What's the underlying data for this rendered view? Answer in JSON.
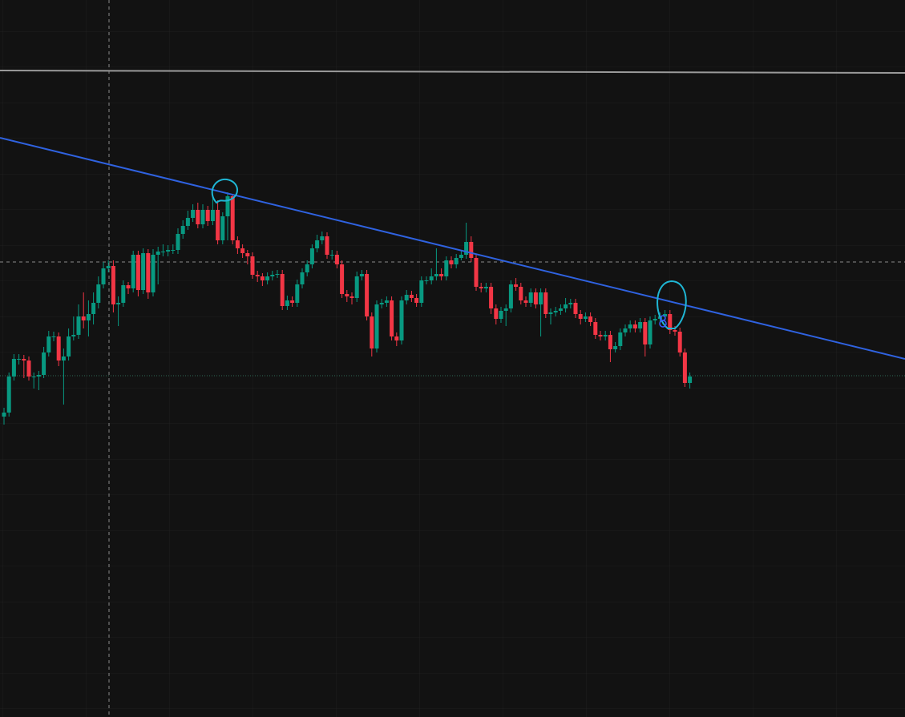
{
  "chart_data": {
    "type": "candlestick",
    "ylim": [
      0,
      89.5
    ],
    "up_color": "#089981",
    "down_color": "#f23645",
    "open": [
      37.5,
      38.0,
      42.5,
      44.7,
      44.7,
      44.5,
      42.5,
      42.5,
      42.7,
      45.5,
      47.5,
      47.5,
      44.5,
      45.0,
      47.5,
      47.7,
      50.0,
      49.5,
      50.3,
      51.7,
      54.0,
      56.0,
      56.3,
      51.5,
      51.7,
      53.9,
      53.5,
      57.7,
      53.3,
      57.9,
      53.0,
      57.7,
      58.1,
      58.1,
      58.3,
      58.3,
      60.3,
      61.3,
      62.3,
      63.3,
      61.5,
      63.3,
      61.9,
      63.3,
      59.5,
      62.5,
      65.0,
      59.5,
      58.5,
      57.9,
      57.5,
      55.2,
      55.0,
      54.5,
      55.0,
      55.2,
      55.3,
      51.3,
      52.0,
      51.7,
      54.0,
      55.5,
      56.5,
      58.5,
      59.5,
      60.0,
      57.7,
      57.7,
      56.5,
      52.8,
      52.5,
      52.3,
      55.0,
      55.3,
      50.0,
      46.0,
      51.5,
      51.7,
      52.0,
      47.5,
      47.0,
      52.0,
      52.7,
      52.3,
      51.7,
      54.5,
      54.5,
      55.0,
      55.3,
      55.0,
      57.0,
      56.5,
      57.3,
      57.7,
      59.3,
      57.3,
      53.7,
      53.5,
      53.7,
      51.0,
      49.7,
      50.7,
      51.0,
      54.0,
      53.7,
      52.0,
      51.7,
      53.0,
      51.5,
      53.0,
      50.3,
      50.5,
      50.7,
      51.0,
      51.5,
      51.7,
      50.3,
      49.7,
      50.0,
      49.3,
      47.7,
      47.5,
      47.7,
      45.9,
      46.3,
      48.0,
      48.5,
      49.0,
      48.5,
      49.3,
      46.5,
      49.5,
      49.7,
      50.0,
      50.3,
      48.3,
      48.1,
      45.5,
      41.7
    ],
    "high": [
      38.6,
      43.0,
      45.3,
      45.3,
      45.2,
      45.0,
      43.0,
      43.2,
      46.2,
      48.2,
      48.1,
      48.0,
      46.0,
      48.5,
      50.0,
      51.5,
      53.0,
      52.0,
      53.0,
      55.0,
      56.8,
      57.0,
      57.0,
      52.5,
      54.5,
      54.3,
      58.2,
      58.2,
      58.5,
      58.4,
      58.4,
      58.7,
      59.0,
      58.9,
      59.0,
      61.0,
      62.0,
      63.2,
      64.0,
      64.2,
      64.0,
      63.8,
      65.0,
      64.5,
      63.0,
      65.5,
      65.3,
      60.0,
      59.0,
      58.3,
      58.0,
      55.7,
      55.4,
      55.5,
      55.7,
      55.8,
      55.8,
      52.6,
      52.5,
      54.6,
      56.0,
      57.0,
      59.0,
      60.2,
      60.6,
      60.5,
      58.3,
      58.2,
      57.0,
      53.3,
      53.0,
      55.6,
      55.8,
      55.8,
      50.5,
      52.0,
      52.2,
      52.5,
      52.5,
      48.0,
      52.5,
      53.3,
      53.2,
      52.8,
      55.0,
      55.0,
      56.0,
      58.5,
      56.0,
      57.5,
      57.5,
      57.8,
      58.3,
      61.7,
      60.0,
      57.8,
      54.2,
      54.2,
      54.2,
      51.5,
      51.2,
      51.5,
      54.5,
      54.8,
      54.2,
      52.5,
      53.5,
      53.5,
      53.5,
      53.5,
      51.0,
      51.2,
      51.5,
      52.3,
      52.2,
      52.2,
      50.8,
      50.5,
      50.5,
      49.8,
      48.2,
      48.2,
      48.2,
      46.8,
      48.5,
      49.0,
      49.5,
      49.5,
      49.8,
      49.8,
      50.0,
      50.2,
      50.5,
      50.8,
      50.8,
      48.8,
      48.6,
      46.0,
      43.0
    ],
    "low": [
      36.5,
      37.5,
      42.0,
      44.0,
      42.3,
      42.0,
      41.0,
      40.8,
      42.3,
      45.0,
      46.9,
      43.8,
      39.0,
      44.5,
      47.0,
      47.2,
      48.5,
      47.5,
      49.0,
      51.0,
      53.5,
      55.5,
      50.5,
      48.8,
      51.2,
      52.8,
      53.0,
      52.5,
      52.8,
      52.2,
      52.5,
      54.0,
      57.5,
      57.5,
      57.8,
      57.8,
      59.7,
      60.8,
      61.8,
      61.0,
      61.0,
      61.3,
      61.4,
      59.0,
      59.0,
      59.5,
      59.0,
      57.8,
      57.3,
      56.5,
      54.7,
      54.3,
      53.8,
      54.0,
      54.5,
      54.8,
      50.8,
      50.8,
      51.2,
      51.2,
      53.5,
      55.0,
      56.0,
      58.0,
      59.0,
      57.2,
      57.1,
      56.0,
      52.3,
      51.8,
      51.5,
      51.8,
      54.5,
      49.5,
      45.0,
      45.5,
      51.0,
      51.2,
      47.0,
      46.3,
      46.5,
      51.5,
      51.8,
      51.2,
      51.2,
      54.0,
      54.0,
      54.5,
      54.5,
      54.5,
      56.0,
      56.0,
      57.0,
      57.2,
      56.8,
      53.2,
      53.0,
      53.0,
      50.3,
      49.0,
      49.2,
      48.8,
      50.5,
      53.2,
      51.5,
      51.2,
      51.2,
      51.0,
      47.5,
      49.8,
      49.0,
      50.0,
      50.2,
      50.5,
      51.0,
      49.8,
      49.0,
      49.3,
      48.8,
      47.2,
      47.0,
      47.0,
      44.3,
      45.5,
      45.8,
      47.5,
      48.0,
      48.0,
      48.0,
      45.0,
      46.0,
      49.0,
      49.2,
      49.5,
      47.8,
      47.6,
      45.0,
      41.2,
      41.0
    ],
    "close": [
      38.0,
      42.5,
      44.7,
      44.7,
      44.5,
      42.5,
      42.5,
      42.7,
      45.5,
      47.5,
      47.5,
      44.5,
      45.0,
      47.5,
      47.7,
      50.0,
      49.5,
      50.3,
      51.7,
      54.0,
      56.0,
      56.3,
      51.5,
      51.7,
      53.9,
      53.5,
      57.7,
      53.3,
      57.9,
      53.0,
      57.7,
      58.1,
      58.1,
      58.3,
      58.3,
      60.3,
      61.3,
      62.3,
      63.3,
      61.5,
      63.3,
      61.9,
      63.3,
      59.5,
      62.5,
      65.0,
      59.5,
      58.5,
      57.9,
      57.5,
      55.2,
      55.0,
      54.5,
      55.0,
      55.2,
      55.3,
      51.3,
      52.0,
      51.7,
      54.0,
      55.5,
      56.5,
      58.5,
      59.5,
      60.0,
      57.7,
      57.7,
      56.5,
      52.8,
      52.5,
      52.3,
      55.0,
      55.3,
      50.0,
      46.0,
      51.5,
      51.7,
      52.0,
      47.5,
      47.0,
      52.0,
      52.7,
      52.3,
      51.7,
      54.5,
      54.5,
      55.0,
      55.3,
      55.0,
      57.0,
      56.5,
      57.3,
      57.7,
      59.3,
      57.3,
      53.7,
      53.5,
      53.7,
      51.0,
      49.7,
      50.7,
      51.0,
      54.0,
      53.7,
      52.0,
      51.7,
      53.0,
      51.5,
      53.0,
      50.3,
      50.5,
      50.7,
      51.0,
      51.5,
      51.7,
      50.3,
      49.7,
      50.0,
      49.3,
      47.7,
      47.5,
      47.7,
      45.9,
      46.3,
      48.0,
      48.5,
      49.0,
      48.5,
      49.3,
      46.5,
      49.5,
      49.7,
      50.0,
      50.3,
      48.3,
      48.1,
      45.5,
      41.7,
      42.5
    ]
  }
}
